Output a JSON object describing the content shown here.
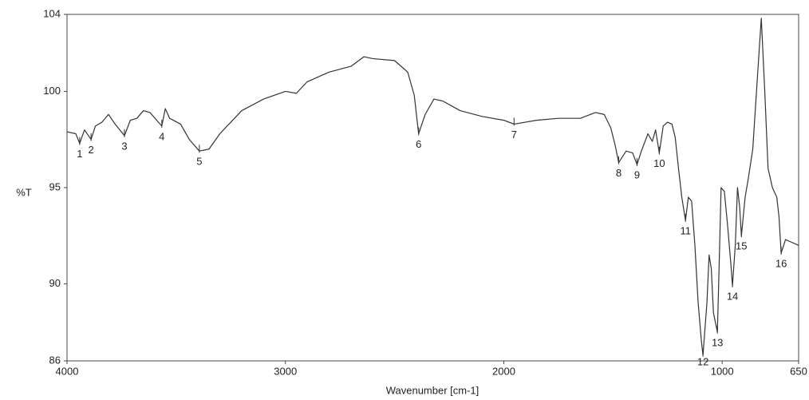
{
  "chart_data": {
    "type": "line",
    "x_label": "Wavenumber [cm-1]",
    "y_label": "%T",
    "color": "#333333",
    "xlim": [
      4000,
      650
    ],
    "ylim": [
      86,
      104
    ],
    "xticks": [
      4000,
      3000,
      2000,
      1000,
      650
    ],
    "yticks": [
      86,
      90,
      95,
      100,
      104
    ],
    "grid": false,
    "x": [
      4000,
      3960,
      3942,
      3920,
      3890,
      3870,
      3840,
      3810,
      3780,
      3737,
      3710,
      3680,
      3650,
      3620,
      3566,
      3550,
      3530,
      3480,
      3440,
      3394,
      3350,
      3300,
      3200,
      3100,
      3000,
      2950,
      2900,
      2800,
      2700,
      2640,
      2600,
      2500,
      2440,
      2410,
      2390,
      2360,
      2320,
      2280,
      2200,
      2100,
      2000,
      1953,
      1850,
      1750,
      1650,
      1580,
      1540,
      1510,
      1490,
      1474,
      1440,
      1410,
      1390,
      1370,
      1340,
      1320,
      1305,
      1288,
      1270,
      1250,
      1230,
      1215,
      1200,
      1185,
      1168,
      1155,
      1140,
      1125,
      1110,
      1095,
      1088,
      1070,
      1060,
      1050,
      1040,
      1022,
      1015,
      1005,
      990,
      975,
      960,
      953,
      940,
      930,
      920,
      912,
      895,
      880,
      860,
      840,
      821,
      805,
      790,
      770,
      750,
      740,
      730,
      710,
      690,
      650
    ],
    "values": [
      97.9,
      97.8,
      97.3,
      98.0,
      97.5,
      98.2,
      98.4,
      98.8,
      98.3,
      97.7,
      98.5,
      98.6,
      99.0,
      98.9,
      98.2,
      99.1,
      98.6,
      98.3,
      97.5,
      96.9,
      97.0,
      97.8,
      99.0,
      99.6,
      100.0,
      99.9,
      100.5,
      101.0,
      101.3,
      101.8,
      101.7,
      101.6,
      101.0,
      99.8,
      97.8,
      98.8,
      99.6,
      99.5,
      99.0,
      98.7,
      98.5,
      98.3,
      98.5,
      98.6,
      98.6,
      98.9,
      98.8,
      98.1,
      97.2,
      96.3,
      96.9,
      96.8,
      96.2,
      96.9,
      97.8,
      97.4,
      98.0,
      96.8,
      98.2,
      98.4,
      98.3,
      97.6,
      96.0,
      94.5,
      93.3,
      94.5,
      94.3,
      92.0,
      89.0,
      87.0,
      86.3,
      89.0,
      91.5,
      90.8,
      88.5,
      87.5,
      90.5,
      95.0,
      94.8,
      93.0,
      91.0,
      89.9,
      92.0,
      95.0,
      94.0,
      92.5,
      94.5,
      95.5,
      97.0,
      100.5,
      103.8,
      100.0,
      96.0,
      95.0,
      94.5,
      93.5,
      91.6,
      92.3,
      92.2,
      92.0
    ],
    "peaks": [
      {
        "label": "1",
        "x": 3942,
        "y": 97.3
      },
      {
        "label": "2",
        "x": 3890,
        "y": 97.5
      },
      {
        "label": "3",
        "x": 3737,
        "y": 97.7
      },
      {
        "label": "4",
        "x": 3566,
        "y": 98.2
      },
      {
        "label": "5",
        "x": 3394,
        "y": 96.9
      },
      {
        "label": "6",
        "x": 2390,
        "y": 97.8
      },
      {
        "label": "7",
        "x": 1953,
        "y": 98.3
      },
      {
        "label": "8",
        "x": 1474,
        "y": 96.3
      },
      {
        "label": "9",
        "x": 1390,
        "y": 96.2
      },
      {
        "label": "10",
        "x": 1288,
        "y": 96.8
      },
      {
        "label": "11",
        "x": 1168,
        "y": 93.3
      },
      {
        "label": "12",
        "x": 1088,
        "y": 86.3
      },
      {
        "label": "13",
        "x": 1022,
        "y": 87.5
      },
      {
        "label": "14",
        "x": 953,
        "y": 89.9
      },
      {
        "label": "15",
        "x": 912,
        "y": 92.5
      },
      {
        "label": "16",
        "x": 730,
        "y": 91.6
      }
    ]
  }
}
